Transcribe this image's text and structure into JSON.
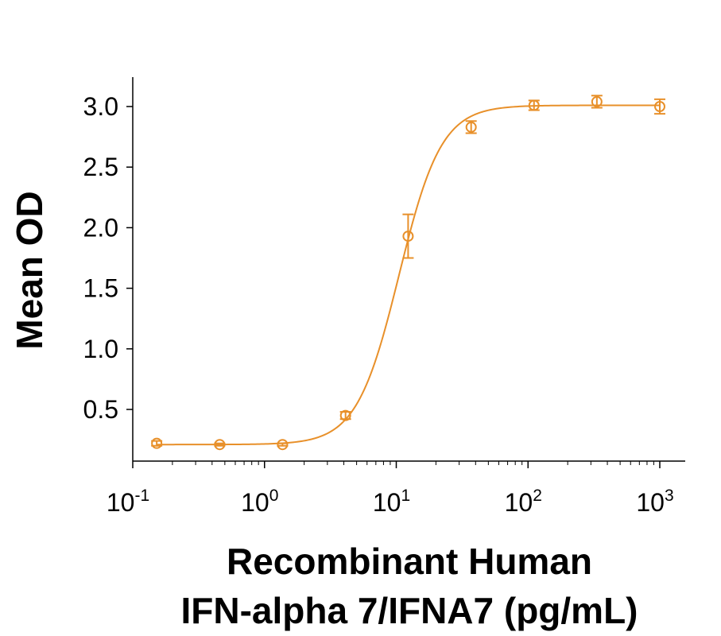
{
  "chart_data": {
    "type": "scatter",
    "title": "",
    "ylabel": "Mean OD",
    "xlabel_lines": [
      "Recombinant Human",
      "IFN-alpha 7/IFNA7 (pg/mL)"
    ],
    "x_scale": "log",
    "xlim": [
      0.1,
      1000
    ],
    "ylim": [
      0.1,
      3.25
    ],
    "x_tick_labels": [
      {
        "base": "10",
        "exp": "-1",
        "value": 0.1
      },
      {
        "base": "10",
        "exp": "0",
        "value": 1
      },
      {
        "base": "10",
        "exp": "1",
        "value": 10
      },
      {
        "base": "10",
        "exp": "2",
        "value": 100
      },
      {
        "base": "10",
        "exp": "3",
        "value": 1000
      }
    ],
    "y_tick_labels": [
      "0.5",
      "1.0",
      "1.5",
      "2.0",
      "2.5",
      "3.0"
    ],
    "y_tick_values": [
      0.5,
      1.0,
      1.5,
      2.0,
      2.5,
      3.0
    ],
    "grid": false,
    "legend": "none",
    "color": "#E8902A",
    "series": [
      {
        "x": [
          0.152,
          0.457,
          1.37,
          4.12,
          12.3,
          37.0,
          111,
          333,
          1000
        ],
        "y": [
          0.22,
          0.21,
          0.21,
          0.45,
          1.93,
          2.83,
          3.01,
          3.04,
          3.0
        ],
        "error": [
          0.02,
          0.01,
          0.01,
          0.03,
          0.18,
          0.05,
          0.04,
          0.05,
          0.06
        ]
      }
    ],
    "fit_curve": {
      "model": "4PL",
      "bottom": 0.21,
      "top": 3.01,
      "ec50": 10.5,
      "hill": 2.7
    }
  }
}
